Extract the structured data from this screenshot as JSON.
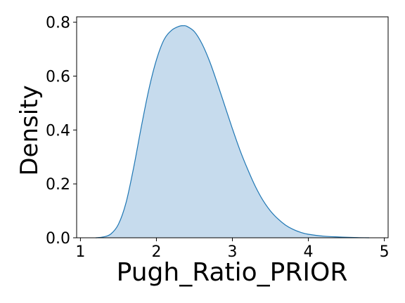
{
  "chart_data": {
    "type": "area",
    "title": "",
    "xlabel": "Pugh_Ratio_PRIOR",
    "ylabel": "Density",
    "xlim": [
      0.95,
      5.05
    ],
    "ylim": [
      0,
      0.82
    ],
    "x_ticks": [
      1,
      2,
      3,
      4,
      5
    ],
    "x_tick_labels": [
      "1",
      "2",
      "3",
      "4",
      "5"
    ],
    "y_ticks": [
      0.0,
      0.2,
      0.4,
      0.6,
      0.8
    ],
    "y_tick_labels": [
      "0.0",
      "0.2",
      "0.4",
      "0.6",
      "0.8"
    ],
    "grid": false,
    "series": [
      {
        "line_color": "#1f77b4",
        "fill_color": "#c6dbed",
        "x": [
          1.2,
          1.3,
          1.4,
          1.5,
          1.6,
          1.7,
          1.8,
          1.9,
          2.0,
          2.1,
          2.2,
          2.3,
          2.35,
          2.4,
          2.5,
          2.6,
          2.7,
          2.8,
          2.9,
          3.0,
          3.1,
          3.2,
          3.3,
          3.4,
          3.5,
          3.6,
          3.7,
          3.8,
          3.9,
          4.0,
          4.2,
          4.4,
          4.6,
          4.8
        ],
        "y": [
          0.0,
          0.003,
          0.014,
          0.05,
          0.13,
          0.26,
          0.41,
          0.55,
          0.66,
          0.735,
          0.77,
          0.785,
          0.787,
          0.785,
          0.765,
          0.72,
          0.655,
          0.575,
          0.49,
          0.405,
          0.325,
          0.255,
          0.192,
          0.14,
          0.1,
          0.07,
          0.047,
          0.031,
          0.02,
          0.013,
          0.006,
          0.003,
          0.001,
          0.0
        ]
      }
    ]
  }
}
